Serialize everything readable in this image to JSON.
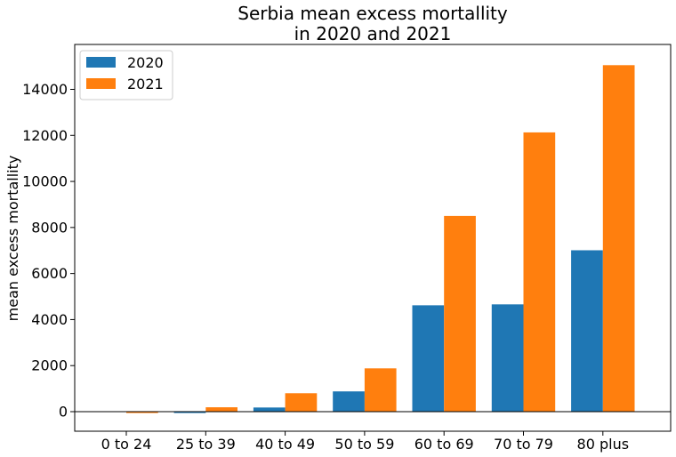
{
  "chart_data": {
    "type": "bar",
    "title_lines": [
      "Serbia mean excess mortallity",
      "in 2020 and 2021"
    ],
    "xlabel": "",
    "ylabel": "mean excess mortallity",
    "categories": [
      "0 to 24",
      "25 to 39",
      "40 to 49",
      "50 to 59",
      "60 to 69",
      "70 to 79",
      "80 plus"
    ],
    "series": [
      {
        "name": "2020",
        "color": "#1f77b4",
        "values": [
          -10,
          -60,
          180,
          880,
          4620,
          4660,
          7010
        ]
      },
      {
        "name": "2021",
        "color": "#ff7f0e",
        "values": [
          -60,
          190,
          800,
          1880,
          8500,
          12130,
          15050
        ]
      }
    ],
    "ylim": [
      -850,
      15950
    ],
    "yticks": [
      0,
      2000,
      4000,
      6000,
      8000,
      10000,
      12000,
      14000
    ],
    "ytick_labels": [
      "0",
      "2000",
      "4000",
      "6000",
      "8000",
      "10000",
      "12000",
      "14000"
    ],
    "zero_line": true,
    "grid": false,
    "legend_position": "top-left"
  }
}
